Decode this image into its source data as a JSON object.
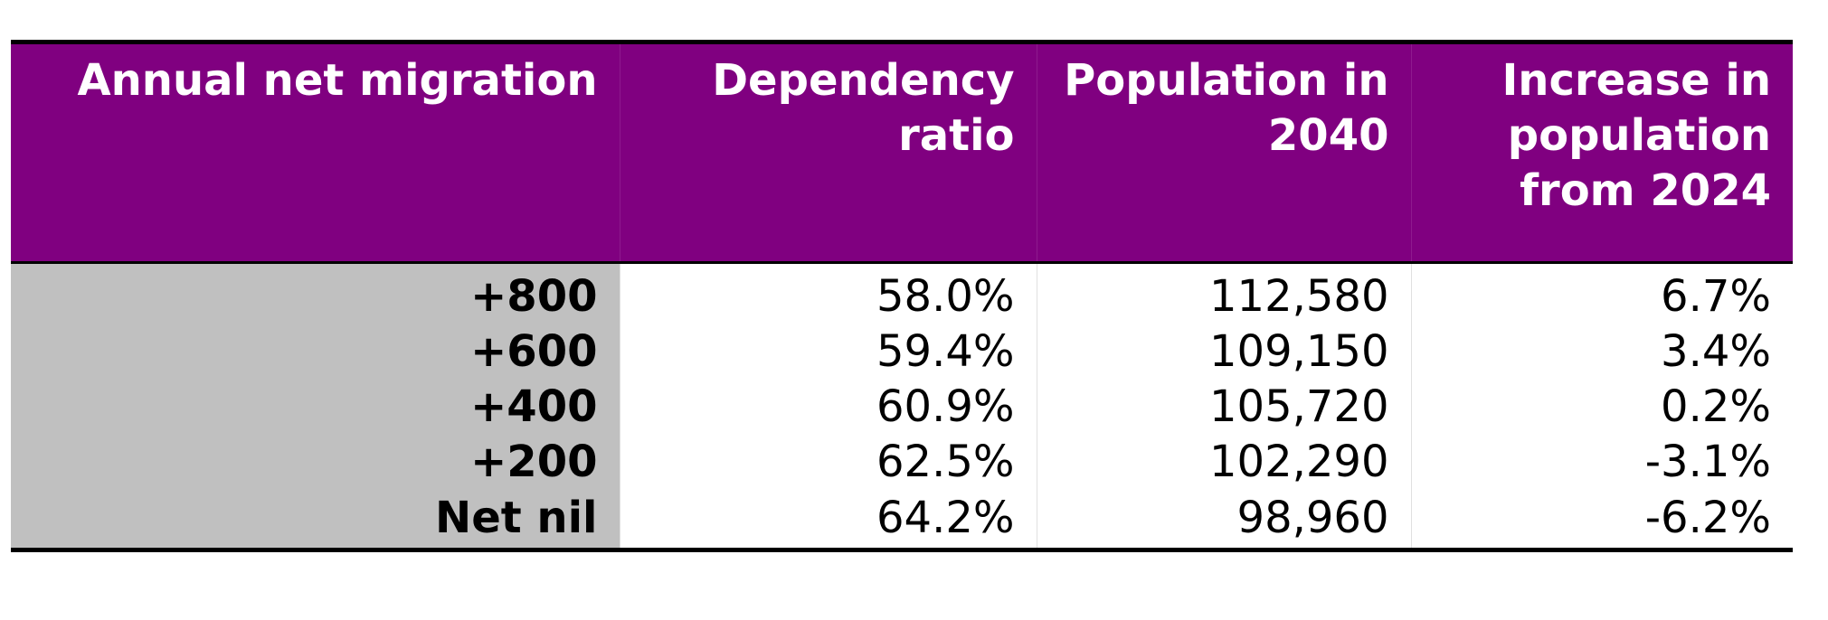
{
  "table": {
    "headers": [
      "Annual net migration",
      "Dependency ratio",
      "Population in 2040",
      "Increase in population from 2024"
    ],
    "rows": [
      {
        "migration": "+800",
        "dependency_ratio": "58.0%",
        "population_2040": "112,580",
        "increase_from_2024": "6.7%"
      },
      {
        "migration": "+600",
        "dependency_ratio": "59.4%",
        "population_2040": "109,150",
        "increase_from_2024": "3.4%"
      },
      {
        "migration": "+400",
        "dependency_ratio": "60.9%",
        "population_2040": "105,720",
        "increase_from_2024": "0.2%"
      },
      {
        "migration": "+200",
        "dependency_ratio": "62.5%",
        "population_2040": "102,290",
        "increase_from_2024": "-3.1%"
      },
      {
        "migration": "Net nil",
        "dependency_ratio": "64.2%",
        "population_2040": "98,960",
        "increase_from_2024": "-6.2%"
      }
    ]
  },
  "colors": {
    "header_bg": "#800080",
    "header_text": "#ffffff",
    "rowhead_bg": "#c0c0c0",
    "rule": "#000000"
  }
}
